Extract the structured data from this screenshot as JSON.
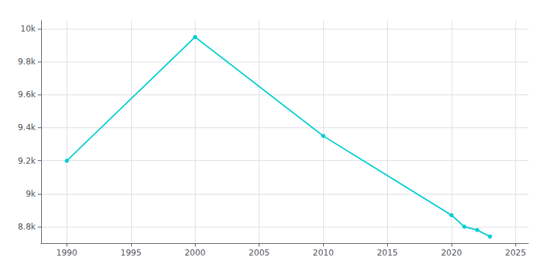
{
  "chart_data": {
    "type": "line",
    "x": [
      1990,
      2000,
      2010,
      2020,
      2021,
      2022,
      2023
    ],
    "values": [
      9200,
      9950,
      9350,
      8870,
      8800,
      8780,
      8740
    ],
    "color": "#00CED1",
    "marker": "circle",
    "xlim": [
      1988,
      2026
    ],
    "xticks": [
      1990,
      1995,
      2000,
      2005,
      2010,
      2015,
      2020,
      2025
    ],
    "ylim": [
      8700,
      10050
    ],
    "yticks": [
      {
        "value": 8800,
        "label": "8.8k"
      },
      {
        "value": 9000,
        "label": "9k"
      },
      {
        "value": 9200,
        "label": "9.2k"
      },
      {
        "value": 9400,
        "label": "9.4k"
      },
      {
        "value": 9600,
        "label": "9.6k"
      },
      {
        "value": 9800,
        "label": "9.8k"
      },
      {
        "value": 10000,
        "label": "10k"
      }
    ],
    "grid": true
  }
}
